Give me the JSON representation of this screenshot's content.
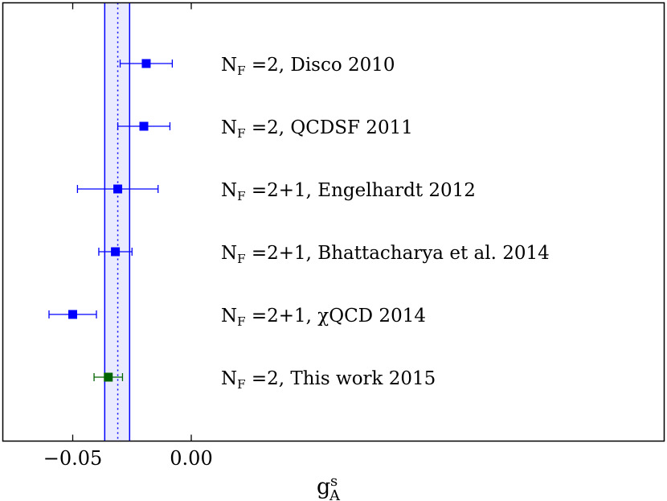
{
  "chart_data": {
    "type": "scatter",
    "orientation": "horizontal-forest-plot",
    "xlabel": "g",
    "xlabel_sup": "s",
    "xlabel_sub": "A",
    "xlim": [
      -0.081,
      0.2
    ],
    "xticks": [
      -0.05,
      0.0
    ],
    "xtick_labels": [
      "−0.05",
      "0.00"
    ],
    "band": {
      "center": -0.031,
      "low": -0.0365,
      "high": -0.026,
      "color": "#0000ff"
    },
    "points": [
      {
        "label_sub": "F",
        "label_text": "=2, Disco 2010",
        "value": -0.019,
        "err_low": 0.011,
        "err_high": 0.011,
        "color": "#0000ff"
      },
      {
        "label_sub": "F",
        "label_text": "=2, QCDSF 2011",
        "value": -0.02,
        "err_low": 0.011,
        "err_high": 0.011,
        "color": "#0000ff"
      },
      {
        "label_sub": "F",
        "label_text": "=2+1, Engelhardt 2012",
        "value": -0.031,
        "err_low": 0.017,
        "err_high": 0.017,
        "color": "#0000ff"
      },
      {
        "label_sub": "F",
        "label_text": "=2+1, Bhattacharya et al. 2014",
        "value": -0.032,
        "err_low": 0.007,
        "err_high": 0.007,
        "color": "#0000ff"
      },
      {
        "label_sub": "F",
        "label_text": "=2+1, χQCD 2014",
        "value": -0.05,
        "err_low": 0.01,
        "err_high": 0.01,
        "color": "#0000ff"
      },
      {
        "label_sub": "F",
        "label_text": "=2, This work 2015",
        "value": -0.035,
        "err_low": 0.006,
        "err_high": 0.006,
        "color": "#006400"
      }
    ],
    "label_prefix": "N"
  }
}
